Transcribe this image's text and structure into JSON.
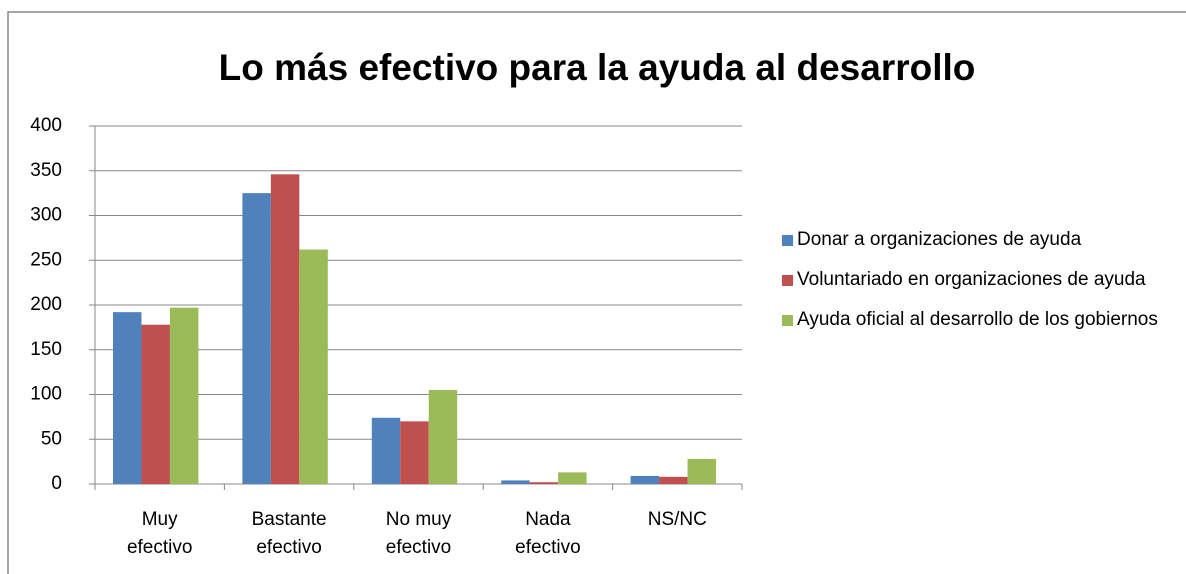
{
  "chart_data": {
    "type": "bar",
    "title": "Lo más efectivo para la ayuda al desarrollo",
    "categories": [
      "Muy efectivo",
      "Bastante efectivo",
      "No muy efectivo",
      "Nada efectivo",
      "NS/NC"
    ],
    "series": [
      {
        "name": "Donar a organizaciones de ayuda",
        "color": "#4f81bd",
        "values": [
          192,
          325,
          74,
          4,
          9
        ]
      },
      {
        "name": "Voluntariado en organizaciones de ayuda",
        "color": "#c0504d",
        "values": [
          178,
          346,
          70,
          2,
          8
        ]
      },
      {
        "name": "Ayuda oficial al desarrollo de los gobiernos",
        "color": "#9bbb59",
        "values": [
          197,
          262,
          105,
          13,
          28
        ]
      }
    ],
    "ylim": [
      0,
      400
    ],
    "yticks": [
      0,
      50,
      100,
      150,
      200,
      250,
      300,
      350,
      400
    ],
    "grid": true,
    "legend": "right"
  }
}
